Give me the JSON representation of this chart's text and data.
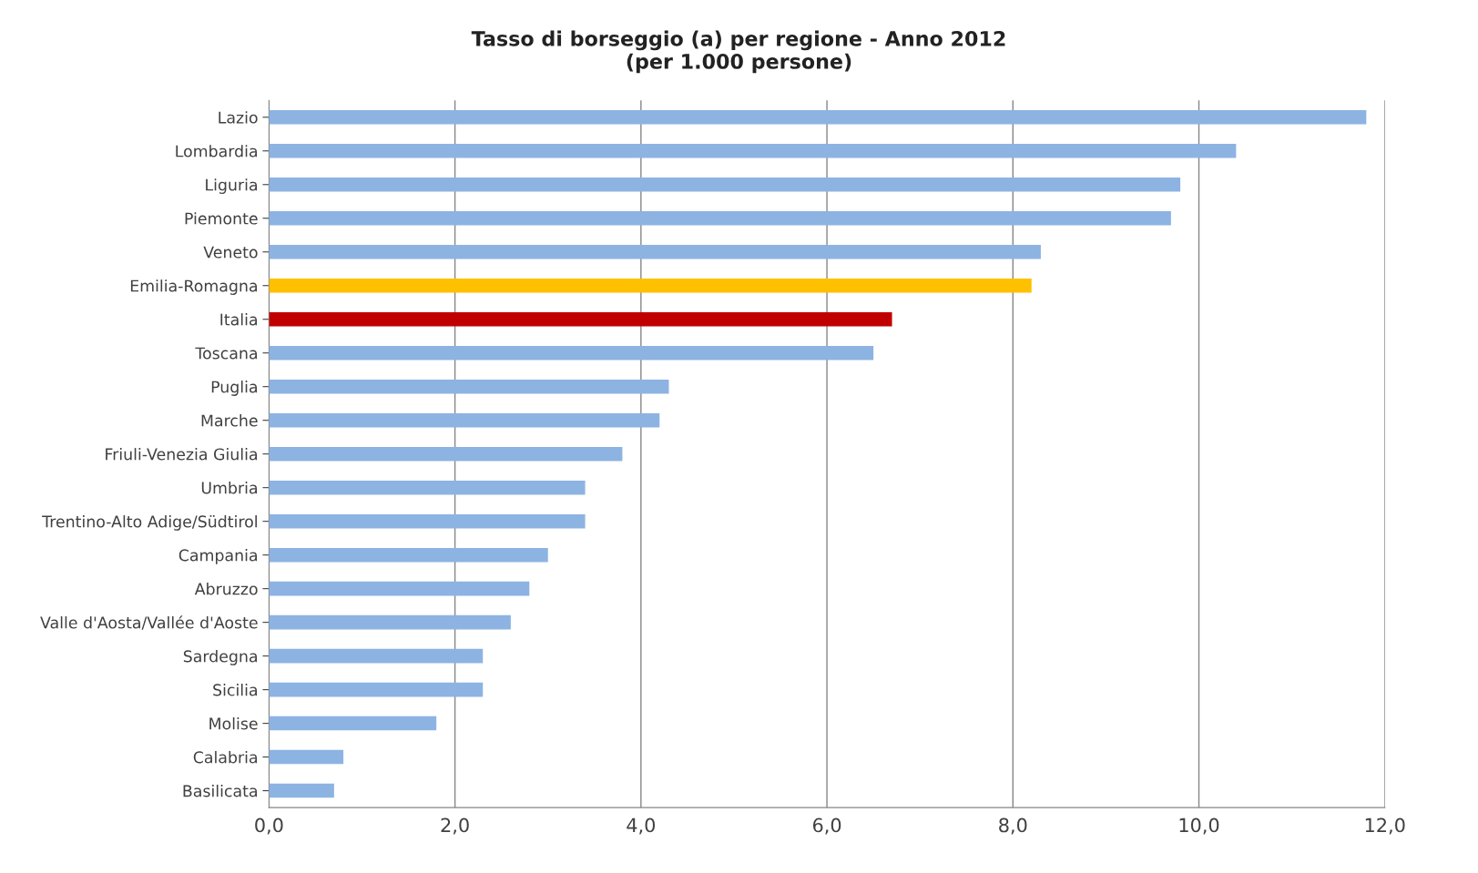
{
  "chart_data": {
    "type": "bar",
    "orientation": "horizontal",
    "title": "Tasso di borseggio (a) per regione - Anno 2012\n(per 1.000 persone)",
    "categories": [
      "Lazio",
      "Lombardia",
      "Liguria",
      "Piemonte",
      "Veneto",
      "Emilia-Romagna",
      "Italia",
      "Toscana",
      "Puglia",
      "Marche",
      "Friuli-Venezia Giulia",
      "Umbria",
      "Trentino-Alto Adige/Südtirol",
      "Campania",
      "Abruzzo",
      "Valle d'Aosta/Vallée d'Aoste",
      "Sardegna",
      "Sicilia",
      "Molise",
      "Calabria",
      "Basilicata"
    ],
    "values": [
      11.8,
      10.4,
      9.8,
      9.7,
      8.3,
      8.2,
      6.7,
      6.5,
      4.3,
      4.2,
      3.8,
      3.4,
      3.4,
      3.0,
      2.8,
      2.6,
      2.3,
      2.3,
      1.8,
      0.8,
      0.7
    ],
    "colors": [
      "#8db3e2",
      "#8db3e2",
      "#8db3e2",
      "#8db3e2",
      "#8db3e2",
      "#ffc000",
      "#c00000",
      "#8db3e2",
      "#8db3e2",
      "#8db3e2",
      "#8db3e2",
      "#8db3e2",
      "#8db3e2",
      "#8db3e2",
      "#8db3e2",
      "#8db3e2",
      "#8db3e2",
      "#8db3e2",
      "#8db3e2",
      "#8db3e2",
      "#8db3e2"
    ],
    "xlim": [
      0,
      12
    ],
    "xticks": [
      {
        "value": 0,
        "label": "0,0"
      },
      {
        "value": 2,
        "label": "2,0"
      },
      {
        "value": 4,
        "label": "4,0"
      },
      {
        "value": 6,
        "label": "6,0"
      },
      {
        "value": 8,
        "label": "8,0"
      },
      {
        "value": 10,
        "label": "10,0"
      },
      {
        "value": 12,
        "label": "12,0"
      }
    ],
    "grid": "x",
    "legend": false
  }
}
